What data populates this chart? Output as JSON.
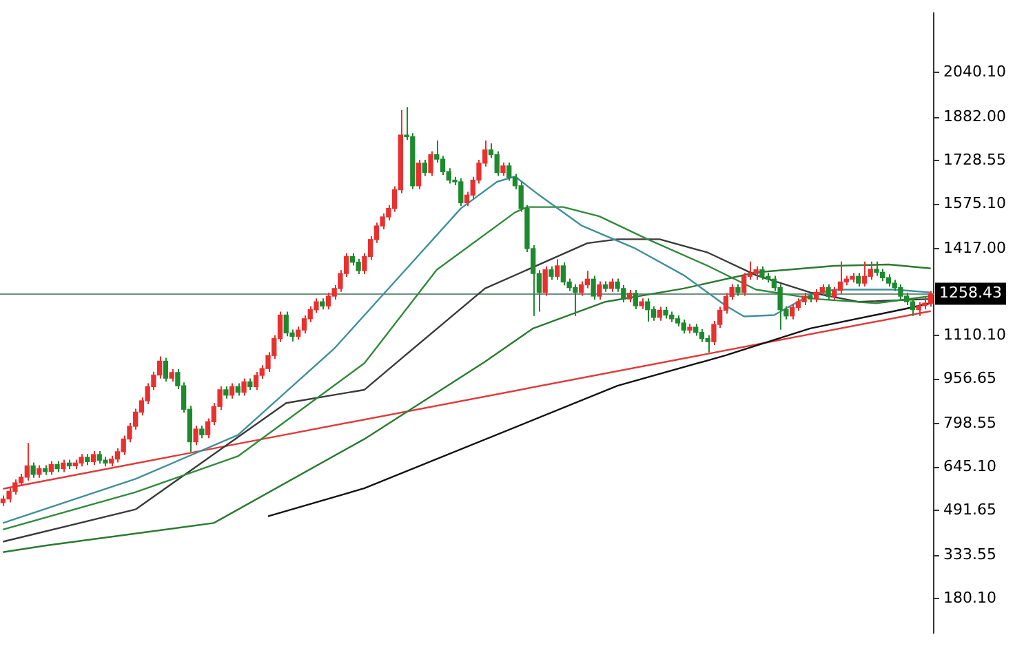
{
  "chart_data": {
    "type": "candlestick",
    "categories": [
      null,
      null,
      null,
      null,
      null,
      null,
      null,
      null,
      null,
      null,
      null,
      null,
      null,
      null,
      null,
      null,
      null,
      null,
      null,
      null,
      null,
      null,
      null,
      null,
      null,
      null,
      null,
      null,
      null,
      null,
      null,
      null,
      null,
      null,
      null,
      null,
      null,
      null,
      null,
      null,
      null,
      null,
      null,
      null,
      null,
      null,
      null,
      null,
      null,
      null,
      null,
      null,
      null,
      null,
      null,
      null,
      null,
      null,
      null,
      null,
      null,
      null,
      null,
      null,
      null,
      null,
      null,
      null,
      null,
      null,
      null,
      null,
      null,
      null,
      null,
      null,
      null,
      null,
      null,
      null,
      null,
      null,
      null,
      null,
      null,
      null,
      null,
      null,
      null,
      null,
      null,
      null,
      null,
      null,
      null,
      null,
      null,
      null,
      null,
      null,
      null,
      null,
      null,
      null,
      null,
      null,
      null,
      null,
      null,
      null,
      null,
      null,
      null,
      null,
      null,
      null,
      null,
      null,
      null,
      null,
      null,
      null,
      null,
      null,
      null,
      null,
      null,
      null,
      null,
      null,
      null,
      null,
      null,
      null,
      null,
      null,
      null,
      null,
      null,
      null,
      null,
      null,
      null,
      null,
      null,
      null,
      null,
      null,
      null,
      null,
      null,
      null,
      null,
      null,
      null
    ],
    "ohlc": [
      [
        520,
        545,
        508,
        533
      ],
      [
        533,
        572,
        521,
        560
      ],
      [
        560,
        602,
        548,
        590
      ],
      [
        590,
        622,
        578,
        610
      ],
      [
        610,
        731,
        598,
        650
      ],
      [
        650,
        662,
        608,
        620
      ],
      [
        620,
        652,
        608,
        640
      ],
      [
        640,
        652,
        618,
        630
      ],
      [
        630,
        667,
        618,
        655
      ],
      [
        655,
        667,
        628,
        640
      ],
      [
        640,
        672,
        628,
        660
      ],
      [
        660,
        672,
        638,
        650
      ],
      [
        650,
        672,
        638,
        660
      ],
      [
        660,
        692,
        648,
        680
      ],
      [
        680,
        692,
        653,
        665
      ],
      [
        665,
        702,
        653,
        690
      ],
      [
        690,
        702,
        658,
        670
      ],
      [
        670,
        682,
        648,
        660
      ],
      [
        660,
        686,
        648,
        674
      ],
      [
        674,
        712,
        662,
        700
      ],
      [
        700,
        757,
        688,
        745
      ],
      [
        745,
        802,
        733,
        790
      ],
      [
        790,
        852,
        778,
        840
      ],
      [
        840,
        892,
        828,
        880
      ],
      [
        880,
        942,
        868,
        930
      ],
      [
        930,
        983,
        918,
        971
      ],
      [
        971,
        1037,
        959,
        1020
      ],
      [
        1020,
        1032,
        948,
        960
      ],
      [
        960,
        992,
        948,
        980
      ],
      [
        980,
        992,
        921,
        933
      ],
      [
        933,
        945,
        838,
        850
      ],
      [
        850,
        862,
        700,
        735
      ],
      [
        735,
        792,
        723,
        780
      ],
      [
        780,
        792,
        748,
        760
      ],
      [
        760,
        818,
        748,
        806
      ],
      [
        806,
        872,
        794,
        860
      ],
      [
        860,
        931,
        848,
        919
      ],
      [
        919,
        931,
        888,
        900
      ],
      [
        900,
        942,
        888,
        930
      ],
      [
        930,
        942,
        898,
        910
      ],
      [
        910,
        959,
        898,
        947
      ],
      [
        947,
        959,
        918,
        930
      ],
      [
        930,
        982,
        918,
        970
      ],
      [
        970,
        1006,
        958,
        994
      ],
      [
        994,
        1052,
        982,
        1040
      ],
      [
        1040,
        1112,
        1028,
        1100
      ],
      [
        1100,
        1195,
        1088,
        1183
      ],
      [
        1183,
        1195,
        1108,
        1120
      ],
      [
        1120,
        1132,
        1090,
        1108
      ],
      [
        1108,
        1142,
        1096,
        1130
      ],
      [
        1130,
        1182,
        1118,
        1170
      ],
      [
        1170,
        1214,
        1158,
        1202
      ],
      [
        1202,
        1242,
        1190,
        1230
      ],
      [
        1230,
        1242,
        1203,
        1215
      ],
      [
        1215,
        1262,
        1203,
        1250
      ],
      [
        1250,
        1289,
        1238,
        1277
      ],
      [
        1277,
        1342,
        1265,
        1330
      ],
      [
        1330,
        1402,
        1318,
        1390
      ],
      [
        1390,
        1402,
        1358,
        1370
      ],
      [
        1370,
        1382,
        1328,
        1340
      ],
      [
        1340,
        1402,
        1328,
        1390
      ],
      [
        1390,
        1462,
        1378,
        1450
      ],
      [
        1450,
        1510,
        1438,
        1498
      ],
      [
        1498,
        1542,
        1486,
        1530
      ],
      [
        1530,
        1572,
        1518,
        1560
      ],
      [
        1560,
        1638,
        1548,
        1626
      ],
      [
        1626,
        1908,
        1614,
        1819
      ],
      [
        1819,
        1918,
        1802,
        1814
      ],
      [
        1814,
        1826,
        1628,
        1640
      ],
      [
        1640,
        1732,
        1628,
        1720
      ],
      [
        1720,
        1732,
        1675,
        1687
      ],
      [
        1687,
        1762,
        1675,
        1750
      ],
      [
        1750,
        1800,
        1722,
        1734
      ],
      [
        1734,
        1746,
        1678,
        1690
      ],
      [
        1690,
        1702,
        1648,
        1660
      ],
      [
        1660,
        1672,
        1642,
        1654
      ],
      [
        1654,
        1666,
        1568,
        1580
      ],
      [
        1580,
        1619,
        1568,
        1607
      ],
      [
        1607,
        1672,
        1595,
        1660
      ],
      [
        1660,
        1732,
        1648,
        1720
      ],
      [
        1720,
        1800,
        1708,
        1767
      ],
      [
        1767,
        1790,
        1738,
        1750
      ],
      [
        1750,
        1762,
        1675,
        1687
      ],
      [
        1687,
        1722,
        1675,
        1710
      ],
      [
        1710,
        1722,
        1658,
        1670
      ],
      [
        1670,
        1682,
        1628,
        1640
      ],
      [
        1640,
        1652,
        1548,
        1560
      ],
      [
        1560,
        1572,
        1406,
        1418
      ],
      [
        1418,
        1430,
        1180,
        1330
      ],
      [
        1330,
        1342,
        1195,
        1263
      ],
      [
        1263,
        1355,
        1251,
        1343
      ],
      [
        1343,
        1355,
        1308,
        1320
      ],
      [
        1320,
        1380,
        1308,
        1357
      ],
      [
        1357,
        1369,
        1288,
        1300
      ],
      [
        1300,
        1312,
        1268,
        1280
      ],
      [
        1280,
        1292,
        1180,
        1263
      ],
      [
        1263,
        1302,
        1251,
        1290
      ],
      [
        1290,
        1340,
        1278,
        1310
      ],
      [
        1310,
        1322,
        1238,
        1250
      ],
      [
        1250,
        1302,
        1238,
        1290
      ],
      [
        1290,
        1302,
        1265,
        1277
      ],
      [
        1277,
        1312,
        1265,
        1300
      ],
      [
        1300,
        1312,
        1265,
        1277
      ],
      [
        1277,
        1289,
        1228,
        1240
      ],
      [
        1240,
        1272,
        1228,
        1260
      ],
      [
        1260,
        1272,
        1204,
        1216
      ],
      [
        1216,
        1242,
        1204,
        1230
      ],
      [
        1230,
        1242,
        1160,
        1202
      ],
      [
        1202,
        1214,
        1163,
        1175
      ],
      [
        1175,
        1212,
        1163,
        1200
      ],
      [
        1200,
        1212,
        1171,
        1183
      ],
      [
        1183,
        1195,
        1158,
        1170
      ],
      [
        1170,
        1182,
        1143,
        1155
      ],
      [
        1155,
        1167,
        1118,
        1130
      ],
      [
        1130,
        1152,
        1118,
        1140
      ],
      [
        1140,
        1152,
        1110,
        1122
      ],
      [
        1122,
        1134,
        1088,
        1100
      ],
      [
        1100,
        1112,
        1051,
        1089
      ],
      [
        1089,
        1162,
        1077,
        1150
      ],
      [
        1150,
        1212,
        1138,
        1200
      ],
      [
        1200,
        1261,
        1188,
        1249
      ],
      [
        1249,
        1292,
        1237,
        1280
      ],
      [
        1280,
        1292,
        1251,
        1263
      ],
      [
        1263,
        1332,
        1251,
        1320
      ],
      [
        1320,
        1372,
        1308,
        1330
      ],
      [
        1330,
        1355,
        1308,
        1343
      ],
      [
        1343,
        1355,
        1308,
        1320
      ],
      [
        1320,
        1332,
        1298,
        1310
      ],
      [
        1310,
        1322,
        1268,
        1280
      ],
      [
        1280,
        1292,
        1131,
        1202
      ],
      [
        1202,
        1214,
        1168,
        1180
      ],
      [
        1180,
        1222,
        1168,
        1210
      ],
      [
        1210,
        1242,
        1198,
        1230
      ],
      [
        1230,
        1262,
        1218,
        1250
      ],
      [
        1250,
        1262,
        1228,
        1240
      ],
      [
        1240,
        1275,
        1228,
        1263
      ],
      [
        1263,
        1292,
        1251,
        1280
      ],
      [
        1280,
        1292,
        1237,
        1249
      ],
      [
        1249,
        1282,
        1237,
        1270
      ],
      [
        1270,
        1372,
        1258,
        1300
      ],
      [
        1300,
        1322,
        1288,
        1310
      ],
      [
        1310,
        1332,
        1298,
        1320
      ],
      [
        1320,
        1332,
        1284,
        1296
      ],
      [
        1296,
        1372,
        1284,
        1320
      ],
      [
        1320,
        1372,
        1308,
        1345
      ],
      [
        1345,
        1372,
        1322,
        1334
      ],
      [
        1334,
        1346,
        1303,
        1315
      ],
      [
        1315,
        1327,
        1284,
        1296
      ],
      [
        1296,
        1308,
        1268,
        1280
      ],
      [
        1280,
        1292,
        1238,
        1250
      ],
      [
        1250,
        1262,
        1218,
        1230
      ],
      [
        1230,
        1242,
        1180,
        1202
      ],
      [
        1202,
        1228,
        1180,
        1216
      ],
      [
        1216,
        1245,
        1203,
        1225
      ],
      [
        1225,
        1268,
        1213,
        1258
      ]
    ],
    "colors": [
      "#e8312f",
      "#e8312f",
      "#e8312f",
      "#e8312f",
      "#e8312f",
      "#1e8a2e",
      "#e8312f",
      "#1e8a2e",
      "#e8312f",
      "#1e8a2e",
      "#e8312f",
      "#1e8a2e",
      "#e8312f",
      "#e8312f",
      "#1e8a2e",
      "#e8312f",
      "#1e8a2e",
      "#1e8a2e",
      "#e8312f",
      "#e8312f",
      "#e8312f",
      "#e8312f",
      "#e8312f",
      "#e8312f",
      "#e8312f",
      "#e8312f",
      "#e8312f",
      "#1e8a2e",
      "#e8312f",
      "#1e8a2e",
      "#1e8a2e",
      "#1e8a2e",
      "#e8312f",
      "#1e8a2e",
      "#e8312f",
      "#e8312f",
      "#e8312f",
      "#1e8a2e",
      "#e8312f",
      "#1e8a2e",
      "#e8312f",
      "#1e8a2e",
      "#e8312f",
      "#e8312f",
      "#e8312f",
      "#e8312f",
      "#e8312f",
      "#1e8a2e",
      "#1e8a2e",
      "#e8312f",
      "#e8312f",
      "#e8312f",
      "#e8312f",
      "#1e8a2e",
      "#e8312f",
      "#e8312f",
      "#e8312f",
      "#e8312f",
      "#1e8a2e",
      "#1e8a2e",
      "#e8312f",
      "#e8312f",
      "#e8312f",
      "#e8312f",
      "#e8312f",
      "#e8312f",
      "#e8312f",
      "#1e8a2e",
      "#1e8a2e",
      "#e8312f",
      "#1e8a2e",
      "#e8312f",
      "#1e8a2e",
      "#1e8a2e",
      "#1e8a2e",
      "#1e8a2e",
      "#1e8a2e",
      "#e8312f",
      "#e8312f",
      "#e8312f",
      "#e8312f",
      "#1e8a2e",
      "#1e8a2e",
      "#e8312f",
      "#1e8a2e",
      "#1e8a2e",
      "#1e8a2e",
      "#1e8a2e",
      "#1e8a2e",
      "#1e8a2e",
      "#e8312f",
      "#1e8a2e",
      "#e8312f",
      "#1e8a2e",
      "#1e8a2e",
      "#1e8a2e",
      "#e8312f",
      "#e8312f",
      "#1e8a2e",
      "#e8312f",
      "#1e8a2e",
      "#e8312f",
      "#1e8a2e",
      "#1e8a2e",
      "#e8312f",
      "#1e8a2e",
      "#e8312f",
      "#1e8a2e",
      "#1e8a2e",
      "#e8312f",
      "#1e8a2e",
      "#1e8a2e",
      "#1e8a2e",
      "#1e8a2e",
      "#e8312f",
      "#1e8a2e",
      "#1e8a2e",
      "#1e8a2e",
      "#e8312f",
      "#e8312f",
      "#e8312f",
      "#e8312f",
      "#1e8a2e",
      "#e8312f",
      "#e8312f",
      "#e8312f",
      "#1e8a2e",
      "#1e8a2e",
      "#1e8a2e",
      "#1e8a2e",
      "#1e8a2e",
      "#e8312f",
      "#e8312f",
      "#e8312f",
      "#1e8a2e",
      "#e8312f",
      "#e8312f",
      "#1e8a2e",
      "#e8312f",
      "#e8312f",
      "#e8312f",
      "#e8312f",
      "#1e8a2e",
      "#e8312f",
      "#e8312f",
      "#1e8a2e",
      "#1e8a2e",
      "#1e8a2e",
      "#1e8a2e",
      "#1e8a2e",
      "#1e8a2e",
      "#1e8a2e",
      "#e8312f",
      "#e8312f",
      "#e8312f"
    ],
    "ylim": [
      60,
      2250
    ],
    "yticks": [
      {
        "value": 2040.1,
        "label": "2040.10"
      },
      {
        "value": 1882,
        "label": "1882.00"
      },
      {
        "value": 1728.55,
        "label": "1728.55"
      },
      {
        "value": 1575.1,
        "label": "1575.10"
      },
      {
        "value": 1417,
        "label": "1417.00"
      },
      {
        "value": 1110.1,
        "label": "1110.10"
      },
      {
        "value": 956.65,
        "label": "956.65"
      },
      {
        "value": 798.55,
        "label": "798.55"
      },
      {
        "value": 645.1,
        "label": "645.10"
      },
      {
        "value": 491.65,
        "label": "491.65"
      },
      {
        "value": 333.55,
        "label": "333.55"
      },
      {
        "value": 180.1,
        "label": "180.10"
      }
    ],
    "tick_labels": "y",
    "series": [
      {
        "type": "line",
        "color": "#3f8f9a",
        "values": [
          448,
          null,
          null,
          null,
          null,
          null,
          null,
          null,
          null,
          null,
          null,
          null,
          null,
          null,
          null,
          null,
          null,
          null,
          null,
          null,
          null,
          null,
          604,
          null,
          null,
          null,
          null,
          null,
          null,
          null,
          null,
          null,
          null,
          null,
          null,
          null,
          null,
          null,
          null,
          759,
          null,
          null,
          null,
          null,
          null,
          null,
          null,
          null,
          null,
          null,
          null,
          null,
          null,
          null,
          null,
          1065,
          null,
          null,
          null,
          null,
          null,
          null,
          null,
          null,
          null,
          null,
          null,
          null,
          1371,
          null,
          null,
          null,
          null,
          null,
          null,
          null,
          1560,
          null,
          null,
          null,
          null,
          null,
          1654,
          null,
          null,
          1673,
          null,
          null,
          null,
          1607,
          null,
          null,
          null,
          null,
          null,
          null,
          1500,
          null,
          null,
          null,
          null,
          null,
          null,
          null,
          null,
          1418,
          null,
          null,
          null,
          null,
          null,
          null,
          null,
          1324,
          null,
          null,
          null,
          null,
          null,
          null,
          1216,
          null,
          null,
          1178,
          null,
          null,
          null,
          null,
          1183,
          null,
          null,
          null,
          null,
          null,
          1254,
          null,
          null,
          null,
          1273,
          null,
          null,
          null,
          null,
          null,
          null,
          null,
          null,
          null,
          1273,
          null,
          null,
          null,
          null,
          null,
          1263
        ]
      },
      {
        "type": "line",
        "color": "#2f8a3a",
        "values": [
          425,
          null,
          null,
          null,
          null,
          null,
          null,
          null,
          null,
          null,
          null,
          null,
          null,
          null,
          null,
          null,
          null,
          null,
          null,
          null,
          null,
          null,
          557,
          null,
          null,
          null,
          null,
          null,
          null,
          null,
          null,
          null,
          null,
          null,
          null,
          null,
          null,
          null,
          null,
          684,
          null,
          null,
          null,
          null,
          null,
          null,
          null,
          null,
          null,
          null,
          null,
          null,
          null,
          null,
          null,
          null,
          null,
          null,
          null,
          null,
          1013,
          null,
          null,
          null,
          null,
          null,
          null,
          null,
          null,
          null,
          null,
          null,
          1343,
          null,
          null,
          null,
          null,
          null,
          null,
          null,
          null,
          null,
          null,
          null,
          null,
          1546,
          null,
          1565,
          null,
          null,
          null,
          null,
          null,
          1565,
          null,
          null,
          null,
          null,
          null,
          1532,
          null,
          null,
          null,
          null,
          null,
          null,
          null,
          1451,
          null,
          null,
          null,
          null,
          null,
          null,
          null,
          null,
          null,
          1357,
          null,
          null,
          null,
          null,
          null,
          null,
          null,
          1273,
          null,
          null,
          null,
          null,
          null,
          null,
          null,
          null,
          null,
          1240,
          null,
          null,
          null,
          null,
          null,
          null,
          null,
          null,
          null,
          1225,
          null,
          null,
          null,
          null,
          null,
          null,
          null,
          null,
          1250
        ]
      },
      {
        "type": "line",
        "color": "#3a3a3a",
        "values": [
          382,
          null,
          null,
          null,
          null,
          null,
          null,
          null,
          null,
          null,
          null,
          null,
          null,
          null,
          null,
          null,
          null,
          null,
          null,
          null,
          null,
          null,
          496,
          null,
          null,
          null,
          null,
          null,
          null,
          null,
          null,
          null,
          null,
          null,
          null,
          null,
          null,
          null,
          null,
          null,
          null,
          null,
          null,
          null,
          null,
          null,
          null,
          872,
          null,
          null,
          null,
          null,
          null,
          null,
          null,
          null,
          null,
          null,
          null,
          null,
          919,
          null,
          null,
          null,
          null,
          null,
          1027,
          null,
          null,
          null,
          null,
          null,
          null,
          null,
          null,
          null,
          null,
          null,
          null,
          null,
          1277,
          null,
          null,
          null,
          null,
          null,
          null,
          null,
          null,
          null,
          null,
          null,
          null,
          null,
          null,
          null,
          null,
          1437,
          null,
          null,
          null,
          null,
          1451,
          null,
          null,
          null,
          null,
          null,
          null,
          1451,
          null,
          null,
          null,
          null,
          null,
          null,
          null,
          1404,
          null,
          null,
          null,
          null,
          null,
          null,
          null,
          1324,
          null,
          null,
          null,
          null,
          null,
          null,
          null,
          null,
          1263,
          null,
          null,
          null,
          null,
          null,
          null,
          null,
          1230,
          null,
          null,
          null,
          null,
          null,
          null,
          null,
          null,
          null,
          null,
          null,
          1240
        ]
      },
      {
        "type": "line",
        "color": "#2a7a30",
        "values": [
          345,
          null,
          null,
          null,
          null,
          null,
          null,
          368,
          null,
          null,
          null,
          null,
          null,
          null,
          null,
          null,
          null,
          null,
          null,
          null,
          null,
          null,
          null,
          null,
          null,
          null,
          null,
          null,
          null,
          null,
          null,
          null,
          null,
          null,
          null,
          448,
          null,
          null,
          null,
          null,
          null,
          null,
          null,
          null,
          null,
          null,
          null,
          null,
          null,
          null,
          null,
          null,
          null,
          null,
          null,
          null,
          null,
          null,
          null,
          null,
          745,
          null,
          null,
          null,
          null,
          null,
          null,
          null,
          null,
          null,
          null,
          null,
          null,
          null,
          null,
          null,
          null,
          null,
          null,
          null,
          1018,
          null,
          null,
          null,
          null,
          null,
          null,
          null,
          1136,
          null,
          null,
          null,
          null,
          null,
          null,
          null,
          null,
          null,
          null,
          null,
          1230,
          null,
          null,
          null,
          null,
          null,
          null,
          null,
          null,
          null,
          null,
          null,
          null,
          1277,
          null,
          null,
          null,
          null,
          null,
          null,
          null,
          null,
          null,
          null,
          null,
          1334,
          null,
          null,
          null,
          null,
          null,
          null,
          null,
          null,
          null,
          null,
          null,
          null,
          1357,
          null,
          null,
          null,
          null,
          null,
          null,
          null,
          null,
          1362,
          null,
          null,
          null,
          null,
          null,
          null,
          1348
        ]
      },
      {
        "type": "line",
        "color": "#111111",
        "values": [
          null,
          null,
          null,
          null,
          null,
          null,
          null,
          null,
          null,
          null,
          null,
          null,
          null,
          null,
          null,
          null,
          null,
          null,
          null,
          null,
          null,
          null,
          null,
          null,
          null,
          null,
          null,
          null,
          null,
          null,
          null,
          null,
          null,
          null,
          null,
          null,
          null,
          null,
          null,
          null,
          null,
          null,
          null,
          null,
          472,
          null,
          null,
          null,
          null,
          null,
          null,
          null,
          null,
          null,
          null,
          null,
          null,
          null,
          null,
          null,
          571,
          null,
          null,
          null,
          null,
          null,
          null,
          null,
          null,
          null,
          null,
          null,
          null,
          null,
          null,
          null,
          null,
          null,
          null,
          null,
          null,
          null,
          null,
          null,
          null,
          null,
          null,
          null,
          null,
          null,
          null,
          null,
          null,
          null,
          null,
          null,
          null,
          null,
          null,
          null,
          null,
          null,
          933,
          null,
          null,
          null,
          null,
          null,
          null,
          null,
          null,
          null,
          null,
          null,
          null,
          null,
          null,
          null,
          null,
          null,
          1041,
          null,
          null,
          null,
          null,
          null,
          null,
          null,
          null,
          null,
          null,
          null,
          null,
          null,
          1136,
          null,
          null,
          null,
          null,
          null,
          null,
          null,
          null,
          null,
          null,
          null,
          null,
          null,
          null,
          null,
          1206,
          null,
          null,
          null,
          1225
        ]
      },
      {
        "type": "line",
        "color": "#e03a3a",
        "values": [
          569,
          null,
          null,
          null,
          null,
          null,
          null,
          null,
          null,
          null,
          null,
          null,
          null,
          null,
          null,
          null,
          null,
          null,
          null,
          null,
          null,
          null,
          null,
          null,
          null,
          null,
          null,
          null,
          null,
          null,
          null,
          null,
          null,
          null,
          null,
          null,
          null,
          null,
          null,
          null,
          null,
          null,
          null,
          null,
          null,
          null,
          null,
          null,
          null,
          null,
          null,
          null,
          null,
          null,
          null,
          null,
          null,
          null,
          null,
          null,
          null,
          null,
          null,
          null,
          null,
          null,
          null,
          null,
          null,
          null,
          null,
          null,
          null,
          null,
          null,
          null,
          null,
          null,
          null,
          null,
          null,
          null,
          null,
          null,
          null,
          null,
          null,
          null,
          null,
          null,
          null,
          null,
          null,
          null,
          null,
          null,
          null,
          null,
          null,
          null,
          null,
          null,
          null,
          null,
          null,
          null,
          null,
          null,
          null,
          null,
          null,
          null,
          null,
          null,
          null,
          null,
          null,
          null,
          null,
          null,
          null,
          null,
          null,
          null,
          null,
          null,
          null,
          null,
          null,
          null,
          null,
          null,
          null,
          null,
          null,
          null,
          null,
          null,
          null,
          null,
          null,
          null,
          null,
          null,
          null,
          null,
          null,
          null,
          null,
          null,
          null,
          null,
          null,
          null,
          1197
        ]
      }
    ],
    "ref_lines": [
      {
        "axis": "y",
        "value": 1258.43,
        "label": "1258.43",
        "color": "#6f8f80"
      }
    ]
  }
}
